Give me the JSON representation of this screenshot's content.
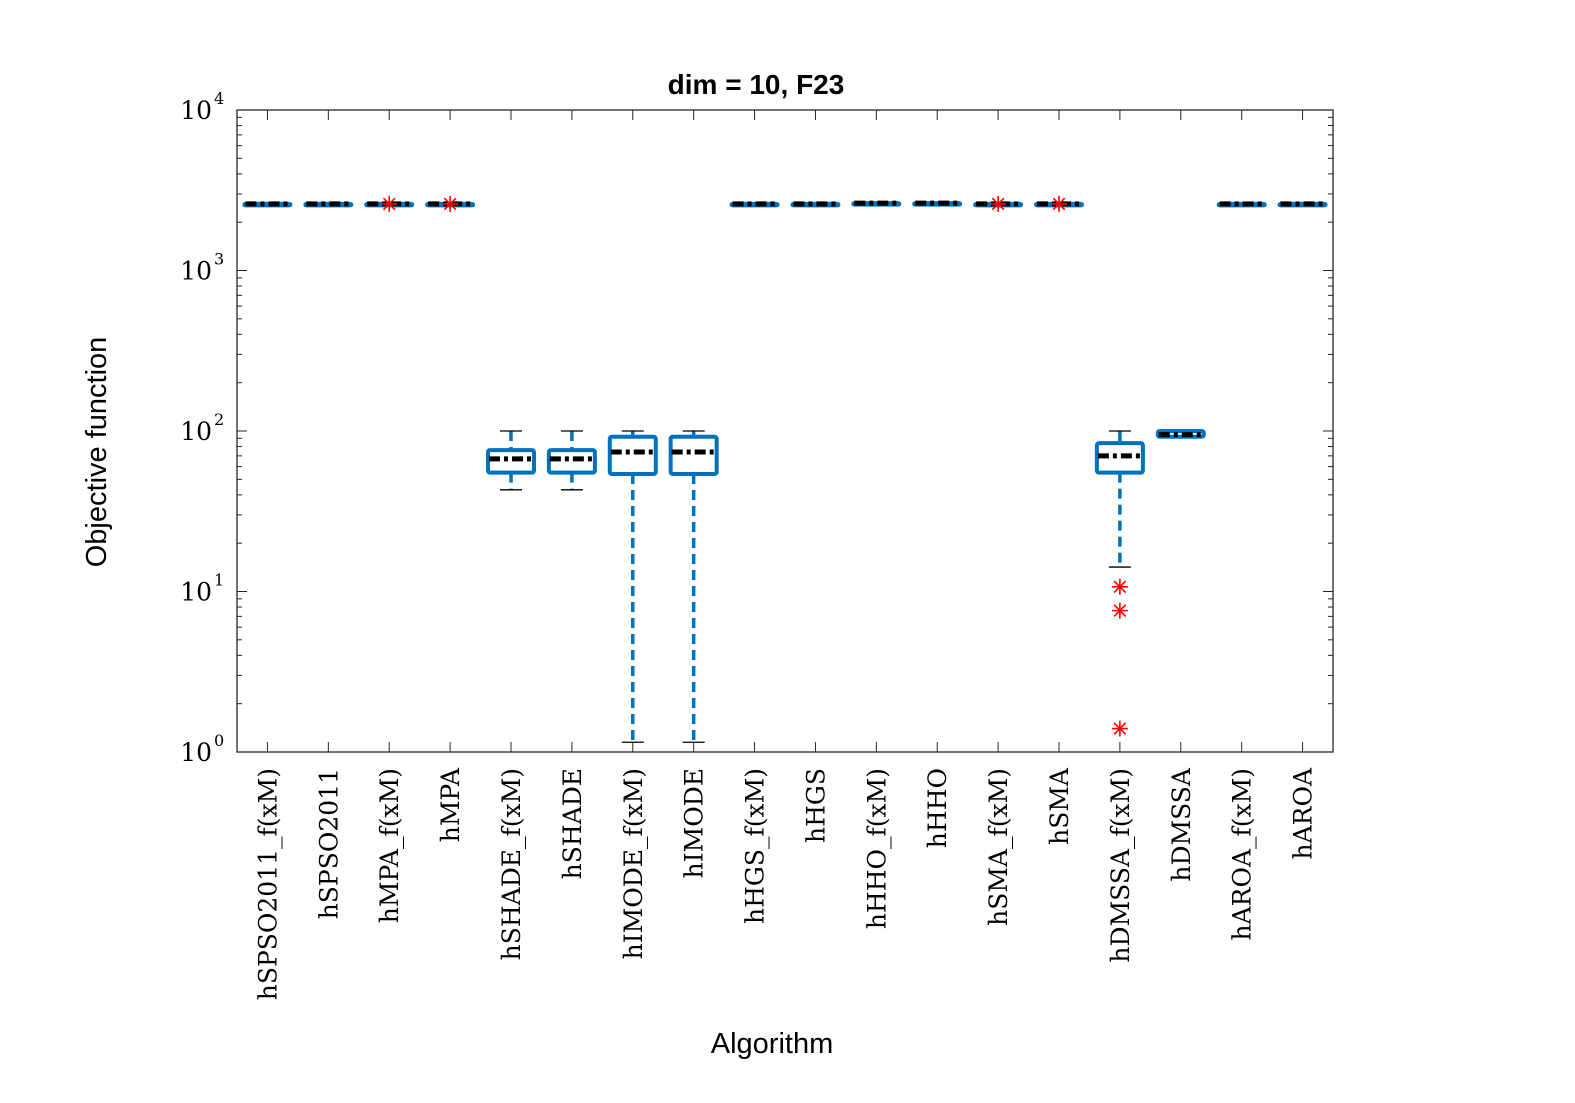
{
  "chart_data": {
    "type": "box",
    "title": "dim = 10,  F23",
    "xlabel": "Algorithm",
    "ylabel": "Objective function",
    "yscale": "log",
    "ylim": [
      1,
      10000
    ],
    "yticks": [
      {
        "base": "10",
        "exp": "0"
      },
      {
        "base": "10",
        "exp": "1"
      },
      {
        "base": "10",
        "exp": "2"
      },
      {
        "base": "10",
        "exp": "3"
      },
      {
        "base": "10",
        "exp": "4"
      }
    ],
    "categories": [
      "hSPSO2011_f(xM)",
      "hSPSO2011",
      "hMPA_f(xM)",
      "hMPA",
      "hSHADE_f(xM)",
      "hSHADE",
      "hIMODE_f(xM)",
      "hIMODE",
      "hHGS_f(xM)",
      "hHGS",
      "hHHO_f(xM)",
      "hHHO",
      "hSMA_f(xM)",
      "hSMA",
      "hDMSSA_f(xM)",
      "hDMSSA",
      "hAROA_f(xM)",
      "hAROA"
    ],
    "boxes": [
      {
        "whisker_low": 2600,
        "q1": 2600,
        "median": 2600,
        "q3": 2600,
        "whisker_high": 2600,
        "outliers": []
      },
      {
        "whisker_low": 2600,
        "q1": 2600,
        "median": 2600,
        "q3": 2600,
        "whisker_high": 2600,
        "outliers": []
      },
      {
        "whisker_low": 2600,
        "q1": 2600,
        "median": 2600,
        "q3": 2600,
        "whisker_high": 2600,
        "outliers": [
          2600
        ]
      },
      {
        "whisker_low": 2600,
        "q1": 2600,
        "median": 2600,
        "q3": 2600,
        "whisker_high": 2600,
        "outliers": [
          2600
        ]
      },
      {
        "whisker_low": 43,
        "q1": 55,
        "median": 67,
        "q3": 76,
        "whisker_high": 100,
        "outliers": []
      },
      {
        "whisker_low": 43,
        "q1": 55,
        "median": 67,
        "q3": 76,
        "whisker_high": 100,
        "outliers": []
      },
      {
        "whisker_low": 1.15,
        "q1": 54,
        "median": 74,
        "q3": 92,
        "whisker_high": 100,
        "outliers": []
      },
      {
        "whisker_low": 1.15,
        "q1": 54,
        "median": 74,
        "q3": 92,
        "whisker_high": 100,
        "outliers": []
      },
      {
        "whisker_low": 2600,
        "q1": 2600,
        "median": 2600,
        "q3": 2600,
        "whisker_high": 2600,
        "outliers": []
      },
      {
        "whisker_low": 2600,
        "q1": 2600,
        "median": 2600,
        "q3": 2600,
        "whisker_high": 2600,
        "outliers": []
      },
      {
        "whisker_low": 2630,
        "q1": 2630,
        "median": 2630,
        "q3": 2630,
        "whisker_high": 2630,
        "outliers": []
      },
      {
        "whisker_low": 2630,
        "q1": 2630,
        "median": 2630,
        "q3": 2630,
        "whisker_high": 2630,
        "outliers": []
      },
      {
        "whisker_low": 2600,
        "q1": 2600,
        "median": 2600,
        "q3": 2600,
        "whisker_high": 2600,
        "outliers": [
          2600
        ]
      },
      {
        "whisker_low": 2600,
        "q1": 2600,
        "median": 2600,
        "q3": 2600,
        "whisker_high": 2600,
        "outliers": [
          2600
        ]
      },
      {
        "whisker_low": 14.2,
        "q1": 55,
        "median": 70,
        "q3": 84,
        "whisker_high": 100,
        "outliers": [
          10.7,
          7.6,
          1.4
        ]
      },
      {
        "whisker_low": 92,
        "q1": 92,
        "median": 95,
        "q3": 100,
        "whisker_high": 100,
        "outliers": []
      },
      {
        "whisker_low": 2600,
        "q1": 2600,
        "median": 2600,
        "q3": 2600,
        "whisker_high": 2600,
        "outliers": []
      },
      {
        "whisker_low": 2600,
        "q1": 2600,
        "median": 2600,
        "q3": 2600,
        "whisker_high": 2600,
        "outliers": []
      }
    ],
    "grid": false,
    "colors": {
      "box": "#0072BD",
      "median": "#000000",
      "outlier": "#FF0000",
      "whisker_cap": "#000000"
    }
  }
}
